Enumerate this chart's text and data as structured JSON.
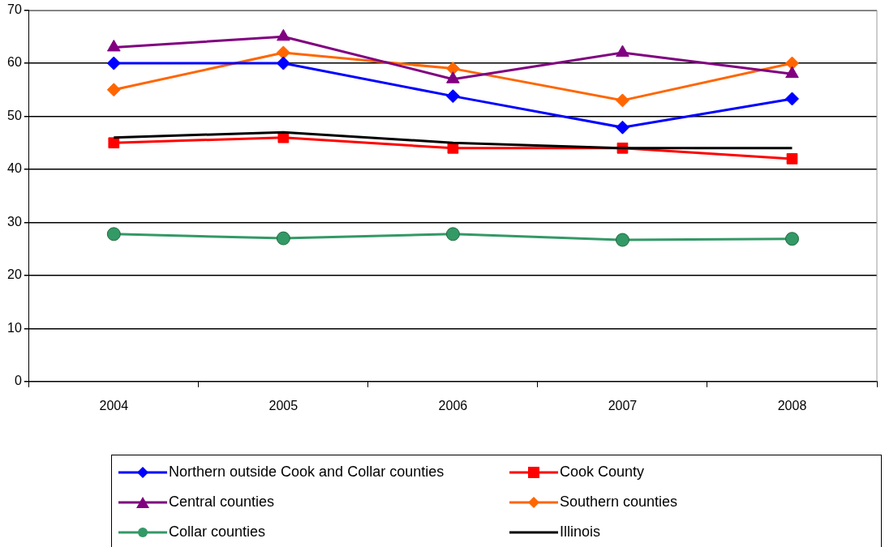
{
  "chart_data": {
    "type": "line",
    "categories": [
      "2004",
      "2005",
      "2006",
      "2007",
      "2008"
    ],
    "ylim": [
      0,
      70
    ],
    "yticks": [
      0,
      10,
      20,
      30,
      40,
      50,
      60,
      70
    ],
    "grid": "y",
    "legend": "bottom",
    "series": [
      {
        "name": "Northern outside Cook and Collar counties",
        "color": "#0000ff",
        "marker": "diamond",
        "values": [
          60,
          60,
          53.8,
          47.9,
          53.3
        ]
      },
      {
        "name": "Cook County",
        "color": "#ff0000",
        "marker": "square",
        "values": [
          45,
          46,
          44,
          44,
          42
        ]
      },
      {
        "name": "Central counties",
        "color": "#800080",
        "marker": "triangle",
        "values": [
          63,
          65,
          57,
          62,
          58
        ]
      },
      {
        "name": "Southern counties",
        "color": "#ff6600",
        "marker": "diamond",
        "values": [
          55,
          62,
          59,
          53,
          60
        ]
      },
      {
        "name": "Collar counties",
        "color": "#339966",
        "marker": "circle",
        "values": [
          27.8,
          27,
          27.8,
          26.7,
          26.9
        ]
      },
      {
        "name": "Illinois",
        "color": "#000000",
        "marker": "none",
        "values": [
          46,
          47,
          45,
          44,
          44
        ]
      }
    ]
  }
}
